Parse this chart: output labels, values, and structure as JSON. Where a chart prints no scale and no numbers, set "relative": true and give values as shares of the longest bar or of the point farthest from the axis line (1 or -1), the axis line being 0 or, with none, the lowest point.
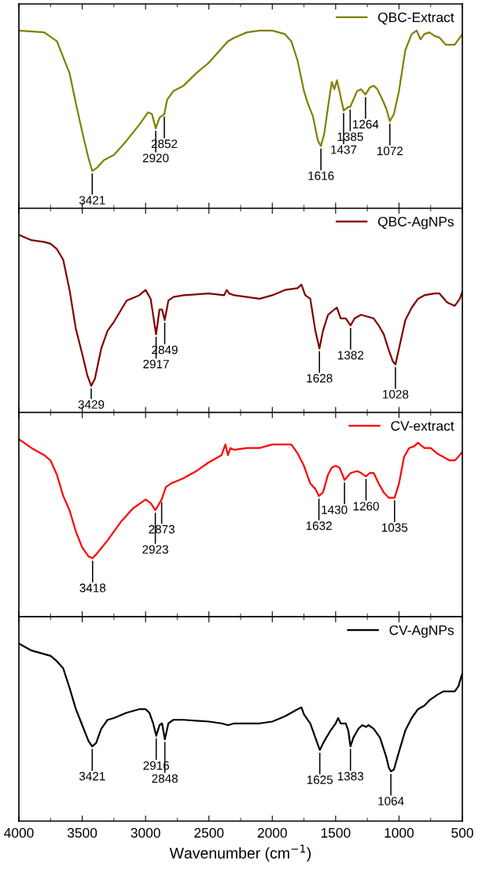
{
  "chart_data": [
    {
      "type": "line",
      "relative": true,
      "xlim": [
        4000,
        500
      ],
      "xticks": [
        4000,
        3500,
        3000,
        2500,
        2000,
        1500,
        1000,
        500
      ],
      "tick_labels": false,
      "legend": "top right",
      "series": [
        {
          "name": "QBC-Extract",
          "color": "#808000",
          "x": [
            4000,
            3800,
            3700,
            3600,
            3550,
            3500,
            3450,
            3421,
            3380,
            3330,
            3250,
            3150,
            3050,
            2980,
            2950,
            2920,
            2890,
            2852,
            2830,
            2780,
            2700,
            2600,
            2500,
            2400,
            2350,
            2300,
            2200,
            2100,
            2000,
            1900,
            1850,
            1800,
            1750,
            1720,
            1680,
            1640,
            1616,
            1590,
            1550,
            1530,
            1510,
            1490,
            1470,
            1437,
            1400,
            1385,
            1330,
            1300,
            1264,
            1230,
            1200,
            1170,
            1130,
            1100,
            1072,
            1040,
            1000,
            950,
            900,
            860,
            830,
            800,
            760,
            720,
            680,
            630,
            560,
            500
          ],
          "values": [
            1.0,
            0.99,
            0.94,
            0.76,
            0.59,
            0.43,
            0.28,
            0.21,
            0.23,
            0.27,
            0.3,
            0.38,
            0.47,
            0.54,
            0.53,
            0.45,
            0.51,
            0.53,
            0.61,
            0.66,
            0.69,
            0.76,
            0.82,
            0.9,
            0.94,
            0.96,
            0.99,
            1.0,
            1.0,
            0.98,
            0.94,
            0.83,
            0.66,
            0.59,
            0.52,
            0.38,
            0.35,
            0.42,
            0.62,
            0.71,
            0.67,
            0.72,
            0.66,
            0.55,
            0.57,
            0.57,
            0.66,
            0.67,
            0.64,
            0.68,
            0.69,
            0.67,
            0.61,
            0.56,
            0.49,
            0.53,
            0.66,
            0.89,
            0.98,
            1.0,
            0.95,
            0.98,
            0.99,
            0.97,
            0.96,
            0.92,
            0.92,
            0.98
          ]
        }
      ],
      "annotations": [
        {
          "text": "3421",
          "x": 3421,
          "y": 0.21
        },
        {
          "text": "2920",
          "x": 2920,
          "y": 0.45
        },
        {
          "text": "2852",
          "x": 2852,
          "y": 0.53
        },
        {
          "text": "1616",
          "x": 1616,
          "y": 0.35
        },
        {
          "text": "1437",
          "x": 1437,
          "y": 0.55
        },
        {
          "text": "1385",
          "x": 1385,
          "y": 0.57
        },
        {
          "text": "1264",
          "x": 1264,
          "y": 0.64
        },
        {
          "text": "1072",
          "x": 1072,
          "y": 0.49
        }
      ]
    },
    {
      "type": "line",
      "relative": true,
      "xlim": [
        4000,
        500
      ],
      "xticks": [
        4000,
        3500,
        3000,
        2500,
        2000,
        1500,
        1000,
        500
      ],
      "tick_labels": false,
      "legend": "top right",
      "series": [
        {
          "name": "QBC-AgNPs",
          "color": "#800000",
          "x": [
            4000,
            3900,
            3800,
            3750,
            3700,
            3650,
            3600,
            3550,
            3500,
            3460,
            3429,
            3400,
            3350,
            3300,
            3250,
            3150,
            3050,
            3000,
            2960,
            2917,
            2890,
            2870,
            2849,
            2820,
            2780,
            2700,
            2500,
            2380,
            2360,
            2340,
            2300,
            2200,
            2100,
            2000,
            1900,
            1800,
            1770,
            1740,
            1700,
            1660,
            1628,
            1600,
            1560,
            1510,
            1490,
            1460,
            1420,
            1382,
            1350,
            1300,
            1250,
            1200,
            1160,
            1120,
            1080,
            1050,
            1028,
            1000,
            950,
            900,
            850,
            800,
            720,
            680,
            620,
            560,
            520,
            500
          ],
          "values": [
            1.0,
            0.97,
            0.96,
            0.95,
            0.92,
            0.86,
            0.69,
            0.47,
            0.33,
            0.21,
            0.15,
            0.19,
            0.36,
            0.46,
            0.51,
            0.63,
            0.66,
            0.69,
            0.64,
            0.44,
            0.58,
            0.58,
            0.52,
            0.63,
            0.65,
            0.66,
            0.67,
            0.66,
            0.69,
            0.67,
            0.66,
            0.65,
            0.64,
            0.66,
            0.69,
            0.7,
            0.72,
            0.66,
            0.64,
            0.46,
            0.36,
            0.46,
            0.55,
            0.58,
            0.59,
            0.53,
            0.53,
            0.49,
            0.53,
            0.55,
            0.54,
            0.53,
            0.49,
            0.44,
            0.35,
            0.29,
            0.27,
            0.36,
            0.52,
            0.59,
            0.64,
            0.66,
            0.67,
            0.67,
            0.62,
            0.6,
            0.64,
            0.68
          ]
        }
      ],
      "annotations": [
        {
          "text": "3429",
          "x": 3429,
          "y": 0.15
        },
        {
          "text": "2917",
          "x": 2917,
          "y": 0.44
        },
        {
          "text": "2849",
          "x": 2849,
          "y": 0.52
        },
        {
          "text": "1628",
          "x": 1628,
          "y": 0.36
        },
        {
          "text": "1382",
          "x": 1382,
          "y": 0.49
        },
        {
          "text": "1028",
          "x": 1028,
          "y": 0.27
        }
      ]
    },
    {
      "type": "line",
      "relative": true,
      "xlim": [
        4000,
        500
      ],
      "xticks": [
        4000,
        3500,
        3000,
        2500,
        2000,
        1500,
        1000,
        500
      ],
      "tick_labels": false,
      "legend": "top right",
      "series": [
        {
          "name": "CV-extract",
          "color": "#ff0000",
          "x": [
            4000,
            3900,
            3800,
            3750,
            3700,
            3650,
            3600,
            3550,
            3500,
            3450,
            3418,
            3380,
            3300,
            3200,
            3100,
            3000,
            2960,
            2923,
            2890,
            2873,
            2840,
            2800,
            2700,
            2600,
            2500,
            2400,
            2370,
            2350,
            2330,
            2300,
            2200,
            2100,
            2000,
            1900,
            1850,
            1800,
            1750,
            1700,
            1660,
            1632,
            1600,
            1560,
            1530,
            1500,
            1470,
            1440,
            1430,
            1380,
            1330,
            1300,
            1260,
            1230,
            1200,
            1160,
            1120,
            1080,
            1035,
            1000,
            960,
            920,
            880,
            850,
            800,
            750,
            700,
            650,
            600,
            560,
            520,
            500
          ],
          "values": [
            1.0,
            0.95,
            0.91,
            0.88,
            0.8,
            0.68,
            0.6,
            0.48,
            0.39,
            0.34,
            0.33,
            0.36,
            0.43,
            0.53,
            0.61,
            0.66,
            0.64,
            0.6,
            0.64,
            0.66,
            0.73,
            0.75,
            0.78,
            0.82,
            0.87,
            0.91,
            0.97,
            0.91,
            0.95,
            0.94,
            0.95,
            0.95,
            0.97,
            0.97,
            0.97,
            0.92,
            0.85,
            0.75,
            0.72,
            0.68,
            0.7,
            0.8,
            0.84,
            0.85,
            0.84,
            0.79,
            0.77,
            0.81,
            0.82,
            0.81,
            0.79,
            0.81,
            0.81,
            0.75,
            0.7,
            0.67,
            0.67,
            0.75,
            0.9,
            0.95,
            0.96,
            0.98,
            0.95,
            0.95,
            0.92,
            0.9,
            0.88,
            0.88,
            0.91,
            0.93
          ]
        }
      ],
      "annotations": [
        {
          "text": "3418",
          "x": 3418,
          "y": 0.33
        },
        {
          "text": "2923",
          "x": 2923,
          "y": 0.6
        },
        {
          "text": "2873",
          "x": 2873,
          "y": 0.66
        },
        {
          "text": "1632",
          "x": 1632,
          "y": 0.68
        },
        {
          "text": "1430",
          "x": 1430,
          "y": 0.77
        },
        {
          "text": "1260",
          "x": 1260,
          "y": 0.79
        },
        {
          "text": "1035",
          "x": 1035,
          "y": 0.67
        }
      ]
    },
    {
      "type": "line",
      "relative": true,
      "xlim": [
        4000,
        500
      ],
      "xticks": [
        4000,
        3500,
        3000,
        2500,
        2000,
        1500,
        1000,
        500
      ],
      "tick_labels": "x",
      "legend": "top right",
      "xlabel": "Wavenumber (cm$^{−1}$)",
      "series": [
        {
          "name": "CV-AgNPs",
          "color": "#000000",
          "x": [
            4000,
            3900,
            3800,
            3750,
            3700,
            3650,
            3600,
            3550,
            3500,
            3450,
            3421,
            3390,
            3350,
            3300,
            3250,
            3150,
            3050,
            3000,
            2970,
            2940,
            2916,
            2890,
            2870,
            2848,
            2820,
            2780,
            2700,
            2500,
            2400,
            2350,
            2300,
            2200,
            2100,
            2000,
            1900,
            1800,
            1770,
            1750,
            1700,
            1660,
            1625,
            1590,
            1540,
            1500,
            1480,
            1460,
            1420,
            1400,
            1383,
            1360,
            1320,
            1290,
            1260,
            1240,
            1200,
            1150,
            1100,
            1080,
            1064,
            1040,
            1000,
            950,
            900,
            850,
            800,
            760,
            700,
            650,
            600,
            560,
            530,
            510,
            500
          ],
          "values": [
            1.0,
            0.96,
            0.94,
            0.93,
            0.9,
            0.86,
            0.75,
            0.63,
            0.54,
            0.45,
            0.42,
            0.44,
            0.52,
            0.57,
            0.58,
            0.61,
            0.63,
            0.63,
            0.61,
            0.55,
            0.48,
            0.54,
            0.55,
            0.46,
            0.55,
            0.57,
            0.57,
            0.56,
            0.55,
            0.54,
            0.55,
            0.55,
            0.55,
            0.56,
            0.59,
            0.63,
            0.64,
            0.6,
            0.55,
            0.47,
            0.4,
            0.45,
            0.51,
            0.55,
            0.58,
            0.55,
            0.55,
            0.51,
            0.42,
            0.47,
            0.52,
            0.54,
            0.53,
            0.54,
            0.52,
            0.47,
            0.36,
            0.3,
            0.28,
            0.29,
            0.39,
            0.51,
            0.58,
            0.63,
            0.65,
            0.68,
            0.71,
            0.73,
            0.73,
            0.73,
            0.76,
            0.81,
            0.83
          ]
        }
      ],
      "annotations": [
        {
          "text": "3421",
          "x": 3421,
          "y": 0.42
        },
        {
          "text": "2916",
          "x": 2916,
          "y": 0.48
        },
        {
          "text": "2848",
          "x": 2848,
          "y": 0.46
        },
        {
          "text": "1625",
          "x": 1625,
          "y": 0.4
        },
        {
          "text": "1383",
          "x": 1383,
          "y": 0.42
        },
        {
          "text": "1064",
          "x": 1064,
          "y": 0.28
        }
      ]
    }
  ]
}
